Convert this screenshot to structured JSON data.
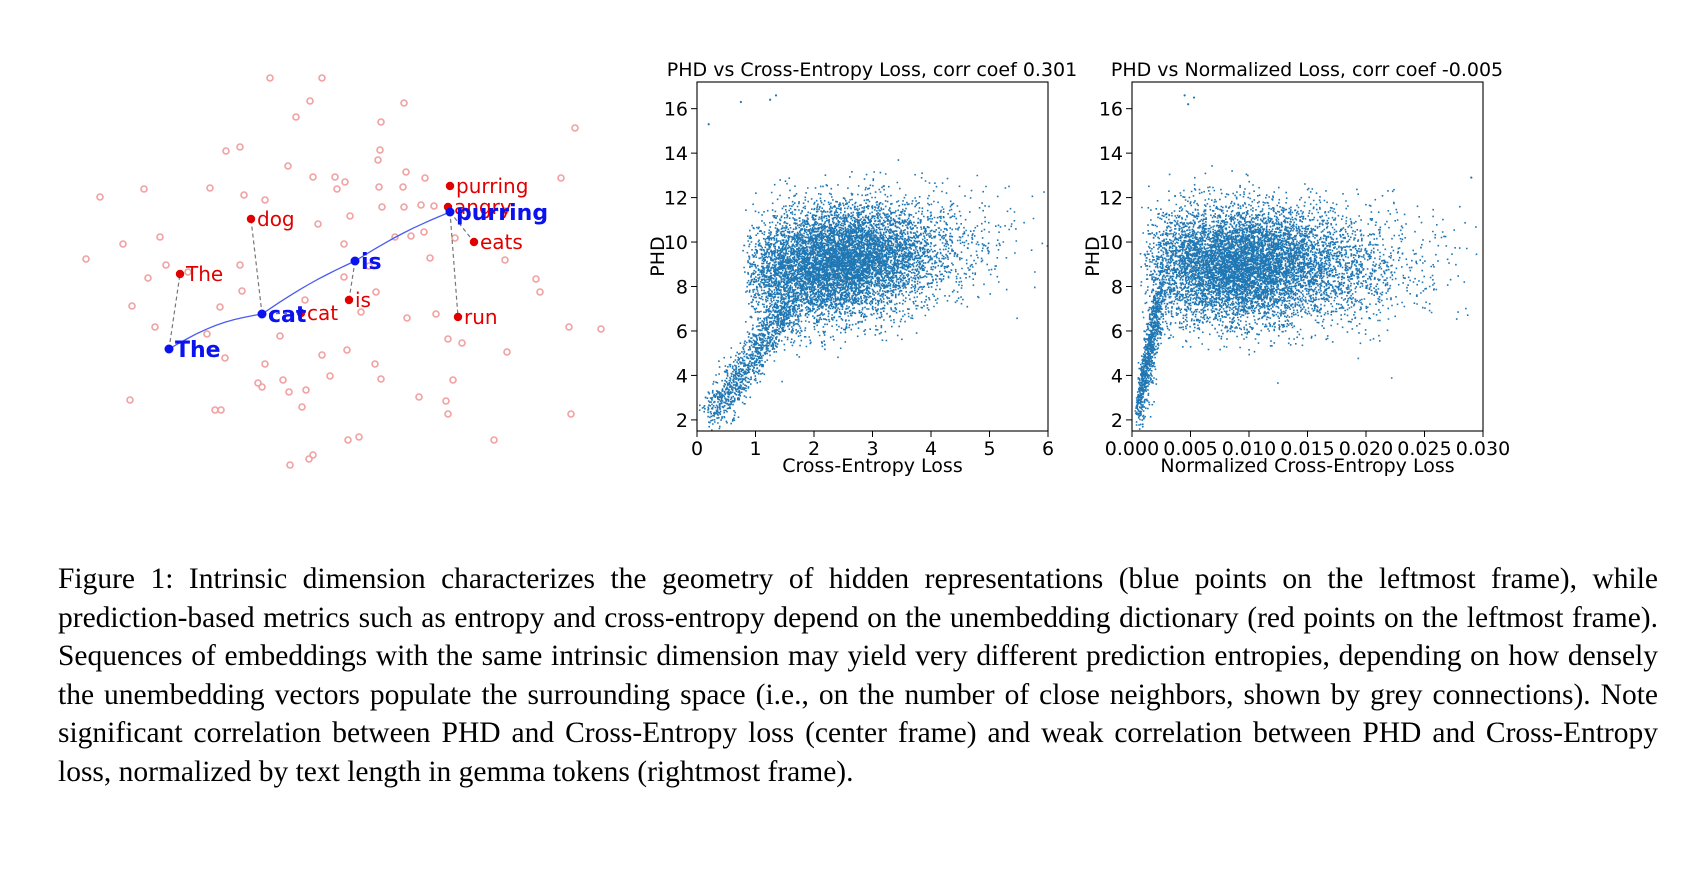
{
  "embedding_panel": {
    "unembedding_words": [
      "purring",
      "angry",
      "dog",
      "eats",
      "The",
      "is",
      "cat",
      "run"
    ],
    "hidden_tokens": [
      "The",
      "cat",
      "is",
      "purring"
    ],
    "colors": {
      "unembedding": "#e00000",
      "hidden": "#0a12ee",
      "background_points": "#f2a0a0",
      "neighbor_link": "#777777"
    }
  },
  "chart_data": [
    {
      "type": "scatter",
      "title": "PHD vs Cross-Entropy Loss, corr coef 0.301",
      "xlabel": "Cross-Entropy Loss",
      "ylabel": "PHD",
      "xlim": [
        0,
        6
      ],
      "ylim": [
        1.5,
        17.2
      ],
      "xticks": [
        "0",
        "1",
        "2",
        "3",
        "4",
        "5",
        "6"
      ],
      "yticks": [
        "2",
        "4",
        "6",
        "8",
        "10",
        "12",
        "14",
        "16"
      ],
      "color": "#1f77b4",
      "grid": false,
      "distribution": {
        "x_range_dense": [
          0.7,
          4.2
        ],
        "y_range_dense": [
          4.5,
          12.5
        ],
        "correlation": 0.301,
        "outlier_points": [
          [
            0.2,
            15.3
          ],
          [
            0.75,
            16.3
          ],
          [
            1.35,
            16.6
          ],
          [
            1.25,
            16.4
          ]
        ]
      }
    },
    {
      "type": "scatter",
      "title": "PHD vs Normalized Loss, corr coef -0.005",
      "xlabel": "Normalized Cross-Entropy Loss",
      "ylabel": "PHD",
      "xlim": [
        0.0,
        0.03
      ],
      "ylim": [
        1.5,
        17.2
      ],
      "xticks": [
        "0.000",
        "0.005",
        "0.010",
        "0.015",
        "0.020",
        "0.025",
        "0.030"
      ],
      "yticks": [
        "2",
        "4",
        "6",
        "8",
        "10",
        "12",
        "14",
        "16"
      ],
      "color": "#1f77b4",
      "grid": false,
      "distribution": {
        "x_range_dense": [
          0.0005,
          0.027
        ],
        "y_range_dense": [
          4.5,
          12.5
        ],
        "correlation": -0.005,
        "outlier_points": [
          [
            0.0045,
            16.6
          ],
          [
            0.0048,
            16.2
          ],
          [
            0.0053,
            16.5
          ],
          [
            0.029,
            12.9
          ]
        ]
      }
    }
  ],
  "caption": "Figure 1: Intrinsic dimension characterizes the geometry of hidden representations (blue points on the leftmost frame), while prediction-based metrics such as entropy and cross-entropy depend on the unembedding dictionary (red points on the leftmost frame). Sequences of embeddings with the same intrinsic dimension may yield very different prediction entropies, depending on how densely the unembedding vectors populate the surrounding space (i.e., on the number of close neighbors, shown by grey connections). Note significant correlation between PHD and Cross-Entropy loss (center frame) and weak correlation between PHD and Cross-Entropy loss, normalized by text length in gemma tokens (rightmost frame)."
}
